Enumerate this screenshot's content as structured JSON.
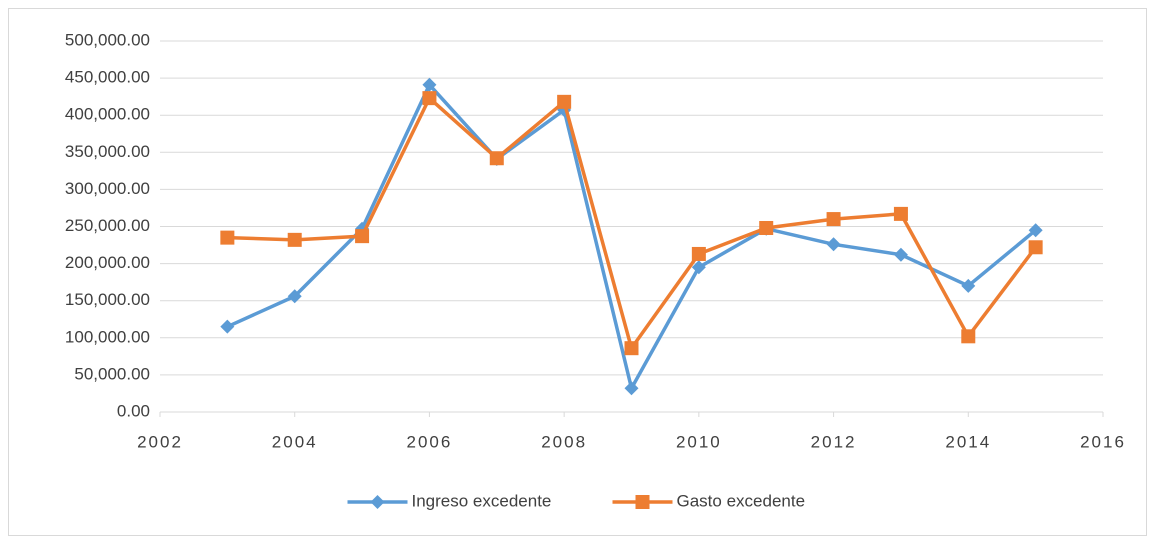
{
  "chart_data": {
    "type": "line",
    "x": [
      2003,
      2004,
      2005,
      2006,
      2007,
      2008,
      2009,
      2010,
      2011,
      2012,
      2013,
      2014,
      2015
    ],
    "series": [
      {
        "name": "Ingreso excedente",
        "color": "#5b9bd5",
        "marker": "diamond",
        "values": [
          115000,
          156000,
          247000,
          441000,
          341000,
          407000,
          32000,
          195000,
          247000,
          226000,
          212000,
          170000,
          245000
        ]
      },
      {
        "name": "Gasto excedente",
        "color": "#ed7d31",
        "marker": "square",
        "values": [
          235000,
          232000,
          237000,
          423000,
          342000,
          418000,
          86000,
          213000,
          248000,
          260000,
          267000,
          102000,
          222000
        ]
      }
    ],
    "xlim": [
      2002,
      2016
    ],
    "xticks": [
      2002,
      2004,
      2006,
      2008,
      2010,
      2012,
      2014,
      2016
    ],
    "ylim": [
      0,
      500000
    ],
    "yticks": [
      {
        "value": 0,
        "label": "0.00"
      },
      {
        "value": 50000,
        "label": "50,000.00"
      },
      {
        "value": 100000,
        "label": "100,000.00"
      },
      {
        "value": 150000,
        "label": "150,000.00"
      },
      {
        "value": 200000,
        "label": "200,000.00"
      },
      {
        "value": 250000,
        "label": "250,000.00"
      },
      {
        "value": 300000,
        "label": "300,000.00"
      },
      {
        "value": 350000,
        "label": "350,000.00"
      },
      {
        "value": 400000,
        "label": "400,000.00"
      },
      {
        "value": 450000,
        "label": "450,000.00"
      },
      {
        "value": 500000,
        "label": "500,000.00"
      }
    ],
    "grid": true,
    "legend": "bottom"
  }
}
